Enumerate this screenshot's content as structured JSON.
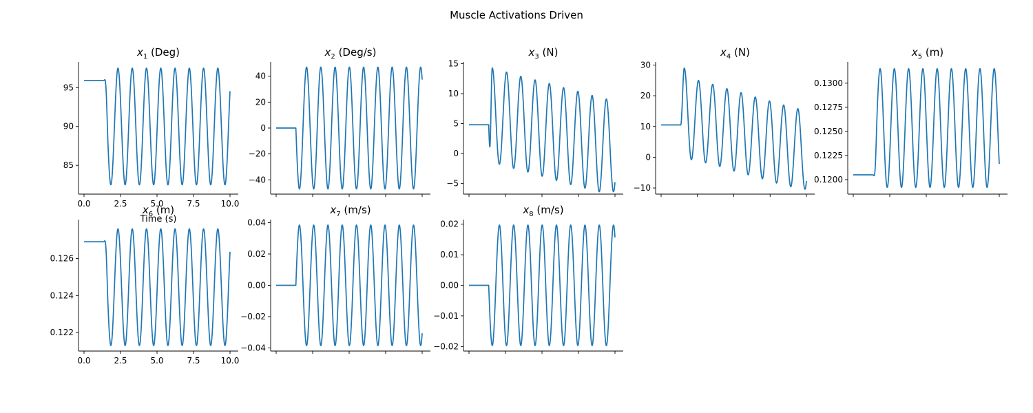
{
  "figure": {
    "title": "Muscle Activations Driven",
    "line_color": "#1f77b4"
  },
  "chart_data": [
    {
      "type": "line",
      "title_var": "x",
      "title_sub": "1",
      "title_unit": " (Deg)",
      "x_range": [
        0,
        10
      ],
      "ylim": [
        81.3,
        98.3
      ],
      "yticks": [
        85,
        90,
        95
      ],
      "ytick_labels": [
        "85",
        "90",
        "95"
      ],
      "xticks": [
        0,
        2.5,
        5,
        7.5,
        10
      ],
      "xtick_labels": [
        "0.0",
        "2.5",
        "5.0",
        "7.5",
        "10.0"
      ],
      "xlabel": "Time (s)",
      "show_xtick_labels": true,
      "series": [
        {
          "x": [
            0,
            1.35,
            10
          ],
          "y": [
            95.9,
            95.9,
            90.0
          ],
          "onset": 1.35,
          "hold": 95.9,
          "center": 90.0,
          "amplitude": 7.5,
          "period": 0.977,
          "start_phase": "max",
          "start_damping": 0.3
        }
      ]
    },
    {
      "type": "line",
      "title_var": "x",
      "title_sub": "2",
      "title_unit": " (Deg/s)",
      "x_range": [
        0,
        10
      ],
      "ylim": [
        -51,
        51
      ],
      "yticks": [
        -40,
        -20,
        0,
        20,
        40
      ],
      "ytick_labels": [
        "−40",
        "−20",
        "0",
        "20",
        "40"
      ],
      "xticks": [
        0,
        2.5,
        5,
        7.5,
        10
      ],
      "show_xtick_labels": false,
      "series": [
        {
          "x": [
            0,
            1.35,
            10
          ],
          "y": [
            0,
            0,
            47
          ],
          "onset": 1.35,
          "hold": 0,
          "center": 0,
          "amplitude": 47,
          "period": 0.977,
          "start_phase": "zero-down",
          "start_damping": 0.3
        }
      ]
    },
    {
      "type": "line",
      "title_var": "x",
      "title_sub": "3",
      "title_unit": " (N)",
      "x_range": [
        0,
        10
      ],
      "ylim": [
        -6.8,
        15.3
      ],
      "yticks": [
        -5,
        0,
        5,
        10,
        15
      ],
      "ytick_labels": [
        "−5",
        "0",
        "5",
        "10",
        "15"
      ],
      "xticks": [
        0,
        2.5,
        5,
        7.5,
        10
      ],
      "show_xtick_labels": false,
      "series": [
        {
          "x": [
            0,
            1.35,
            10
          ],
          "y": [
            4.8,
            4.8,
            -2.8
          ],
          "onset": 1.35,
          "hold": 4.8,
          "peaks": [
            14.3,
            13.6,
            12.9,
            12.3,
            11.7,
            11.0,
            10.4,
            9.7,
            9.1
          ],
          "troughs": [
            -1.8,
            -2.5,
            -3.1,
            -3.8,
            -4.5,
            -5.2,
            -5.8,
            -6.4
          ],
          "first_dip": 1.1,
          "period": 0.977
        }
      ]
    },
    {
      "type": "line",
      "title_var": "x",
      "title_sub": "4",
      "title_unit": " (N)",
      "x_range": [
        0,
        10
      ],
      "ylim": [
        -12,
        31
      ],
      "yticks": [
        -10,
        0,
        10,
        20,
        30
      ],
      "ytick_labels": [
        "−10",
        "0",
        "10",
        "20",
        "30"
      ],
      "xticks": [
        0,
        2.5,
        5,
        7.5,
        10
      ],
      "show_xtick_labels": false,
      "series": [
        {
          "x": [
            0,
            1.35,
            10
          ],
          "y": [
            10.5,
            10.5,
            -5.6
          ],
          "onset": 1.35,
          "hold": 10.5,
          "peaks": [
            29.0,
            25.0,
            23.7,
            22.3,
            21.0,
            19.6,
            18.3,
            17.0,
            15.8
          ],
          "troughs": [
            -0.8,
            -1.8,
            -3.0,
            -4.5,
            -5.7,
            -7.0,
            -8.4,
            -9.6,
            -10.4
          ],
          "period": 0.977
        }
      ]
    },
    {
      "type": "line",
      "title_var": "x",
      "title_sub": "5",
      "title_unit": " (m)",
      "x_range": [
        0,
        10
      ],
      "ylim": [
        0.1185,
        0.1322
      ],
      "yticks": [
        0.12,
        0.1225,
        0.125,
        0.1275,
        0.13
      ],
      "ytick_labels": [
        "0.1200",
        "0.1225",
        "0.1250",
        "0.1275",
        "0.1300"
      ],
      "xticks": [
        0,
        2.5,
        5,
        7.5,
        10
      ],
      "show_xtick_labels": false,
      "series": [
        {
          "x": [
            0,
            1.35,
            10
          ],
          "y": [
            0.1205,
            0.1205,
            0.1255
          ],
          "onset": 1.35,
          "hold": 0.1205,
          "center": 0.12535,
          "amplitude": 0.00615,
          "period": 0.977,
          "start_phase": "min",
          "start_damping": 0.3
        }
      ]
    },
    {
      "type": "line",
      "title_var": "x",
      "title_sub": "6",
      "title_unit": " (m)",
      "x_range": [
        0,
        10
      ],
      "ylim": [
        0.121,
        0.1281
      ],
      "yticks": [
        0.122,
        0.124,
        0.126
      ],
      "ytick_labels": [
        "0.122",
        "0.124",
        "0.126"
      ],
      "xticks": [
        0,
        2.5,
        5,
        7.5,
        10
      ],
      "xtick_labels": [
        "0.0",
        "2.5",
        "5.0",
        "7.5",
        "10.0"
      ],
      "xlabel": "Time (s)",
      "show_xtick_labels": true,
      "xlabel_shown": false,
      "series": [
        {
          "x": [
            0,
            1.35,
            10
          ],
          "y": [
            0.1269,
            0.1269,
            0.1245
          ],
          "onset": 1.35,
          "hold": 0.1269,
          "center": 0.12445,
          "amplitude": 0.00315,
          "period": 0.977,
          "start_phase": "max",
          "start_damping": 0.3
        }
      ]
    },
    {
      "type": "line",
      "title_var": "x",
      "title_sub": "7",
      "title_unit": " (m/s)",
      "x_range": [
        0,
        10
      ],
      "ylim": [
        -0.042,
        0.042
      ],
      "yticks": [
        -0.04,
        -0.02,
        0,
        0.02,
        0.04
      ],
      "ytick_labels": [
        "−0.04",
        "−0.02",
        "0.00",
        "0.02",
        "0.04"
      ],
      "xticks": [
        0,
        2.5,
        5,
        7.5,
        10
      ],
      "show_xtick_labels": false,
      "series": [
        {
          "x": [
            0,
            1.35,
            10
          ],
          "y": [
            0,
            0,
            -0.038
          ],
          "onset": 1.35,
          "hold": 0,
          "center": 0,
          "amplitude": 0.0385,
          "period": 0.977,
          "start_phase": "zero-up",
          "start_damping": 0.3
        }
      ]
    },
    {
      "type": "line",
      "title_var": "x",
      "title_sub": "8",
      "title_unit": " (m/s)",
      "x_range": [
        0,
        10
      ],
      "ylim": [
        -0.0215,
        0.0215
      ],
      "yticks": [
        -0.02,
        -0.01,
        0,
        0.01,
        0.02
      ],
      "ytick_labels": [
        "−0.02",
        "−0.01",
        "0.00",
        "0.01",
        "0.02"
      ],
      "xticks": [
        0,
        2.5,
        5,
        7.5,
        10
      ],
      "show_xtick_labels": false,
      "series": [
        {
          "x": [
            0,
            1.35,
            10
          ],
          "y": [
            0,
            0,
            0.0195
          ],
          "onset": 1.35,
          "hold": 0,
          "center": 0,
          "amplitude": 0.0197,
          "period": 0.977,
          "start_phase": "zero-down",
          "start_damping": 0.3
        }
      ]
    }
  ]
}
